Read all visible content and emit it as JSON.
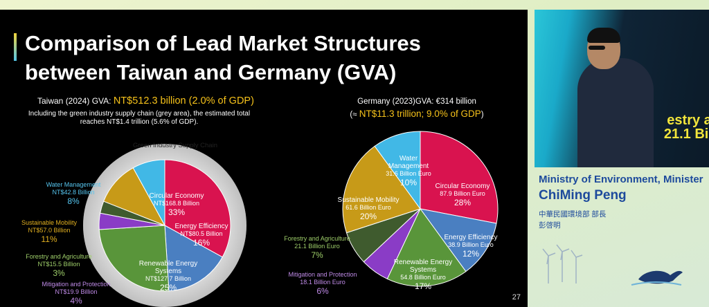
{
  "slide": {
    "title_line1": "Comparison of Lead Market Structures",
    "title_line2": "between Taiwan and Germany (GVA)",
    "page_number": "27",
    "taiwan": {
      "header_prefix": "Taiwan (2024) GVA: ",
      "header_highlight": "NT$512.3 billion (2.0% of GDP)",
      "note_line1": "Including the green industry supply chain (grey area), the estimated total",
      "note_line2": "reaches NT$1.4 trillion (5.6% of GDP).",
      "supply_chain_label": "Green Industry Supply Chain"
    },
    "germany": {
      "header_line1": "Germany (2023)GVA: €314 billion",
      "header_prefix": "(≈ ",
      "header_highlight": "NT$11.3 trillion; 9.0% of GDP",
      "header_suffix": ")"
    }
  },
  "chart_data": [
    {
      "type": "pie",
      "title": "Taiwan (2024) GVA: NT$512.3 billion (2.0% of GDP)",
      "slices": [
        {
          "name": "Circular Economy",
          "value_text": "NT$168.8 Billion",
          "pct": "33%",
          "share": 33,
          "color": "#d9134f"
        },
        {
          "name": "Energy Efficiency",
          "value_text": "NT$80.5 Billion",
          "pct": "16%",
          "share": 16,
          "color": "#4a7fc1"
        },
        {
          "name": "Renewable Energy Systems",
          "value_text": "NT$127.7 Billion",
          "pct": "25%",
          "share": 25,
          "color": "#59953a"
        },
        {
          "name": "Mitigation and Protection",
          "value_text": "NT$19.9 Billion",
          "pct": "4%",
          "share": 4,
          "color": "#8a3cc6"
        },
        {
          "name": "Forestry and Agriculture",
          "value_text": "NT$15.5 Billion",
          "pct": "3%",
          "share": 3,
          "color": "#3f5b2e"
        },
        {
          "name": "Sustainable Mobility",
          "value_text": "NT$57.0 Billion",
          "pct": "11%",
          "share": 11,
          "color": "#c79a18"
        },
        {
          "name": "Water Management",
          "value_text": "NT$42.8 Billion",
          "pct": "8%",
          "share": 8,
          "color": "#41b8e6"
        }
      ]
    },
    {
      "type": "pie",
      "title": "Germany (2023)GVA: €314 billion",
      "slices": [
        {
          "name": "Circular Economy",
          "value_text": "87.9 Billion Euro",
          "pct": "28%",
          "share": 28,
          "color": "#d9134f"
        },
        {
          "name": "Energy Efficiency",
          "value_text": "38.9 Billion Euro",
          "pct": "12%",
          "share": 12,
          "color": "#4a7fc1"
        },
        {
          "name": "Renewable Energy Systems",
          "value_text": "54.8 Billion Euro",
          "pct": "17%",
          "share": 17,
          "color": "#59953a"
        },
        {
          "name": "Mitigation and Protection",
          "value_text": "18.1 Billion Euro",
          "pct": "6%",
          "share": 6,
          "color": "#8a3cc6"
        },
        {
          "name": "Forestry and Agriculture",
          "value_text": "21.1 Billion Euro",
          "pct": "7%",
          "share": 7,
          "color": "#3f5b2e"
        },
        {
          "name": "Sustainable Mobility",
          "value_text": "61.6 Billion Euro",
          "pct": "20%",
          "share": 20,
          "color": "#c79a18"
        },
        {
          "name": "Water Management",
          "value_text": "31.6 Billion Euro",
          "pct": "10%",
          "share": 10,
          "color": "#41b8e6"
        }
      ]
    }
  ],
  "video": {
    "screen_text_line1": "estry an",
    "screen_text_line2": "21.1 Billi",
    "screen_text_line3": "7"
  },
  "caption": {
    "title": "Ministry of Environment, Minister",
    "name": "ChiMing Peng",
    "zh_title": "中華民國環境部 部長",
    "zh_name": "彭啓明"
  },
  "colors": {
    "accent_blue": "#1d4a9c",
    "highlight_yellow": "#f6c21a"
  }
}
